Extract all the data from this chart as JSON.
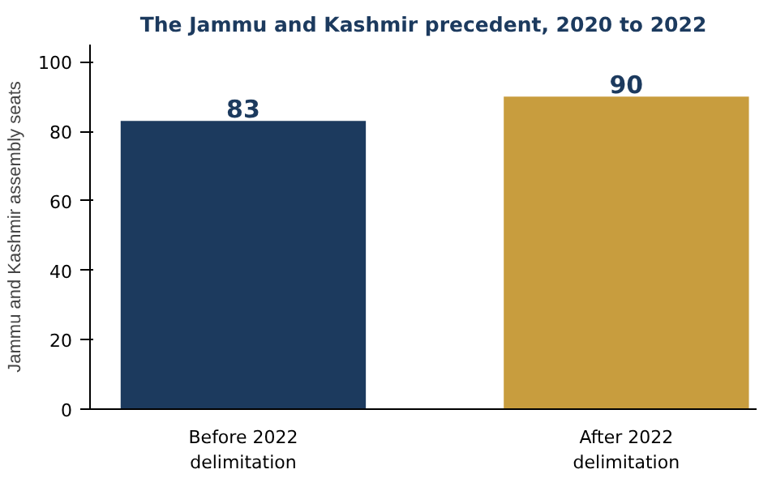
{
  "chart_data": {
    "type": "bar",
    "title": "The Jammu and Kashmir precedent, 2020 to 2022",
    "ylabel": "Jammu and Kashmir assembly seats",
    "categories": [
      "Before 2022\ndelimitation",
      "After 2022\ndelimitation"
    ],
    "values": [
      83,
      90
    ],
    "colors": [
      "#1c3a5e",
      "#c89d3e"
    ],
    "ylim": [
      0,
      105
    ],
    "yticks": [
      0,
      20,
      40,
      60,
      80,
      100
    ],
    "data_labels": true,
    "grid": false
  }
}
